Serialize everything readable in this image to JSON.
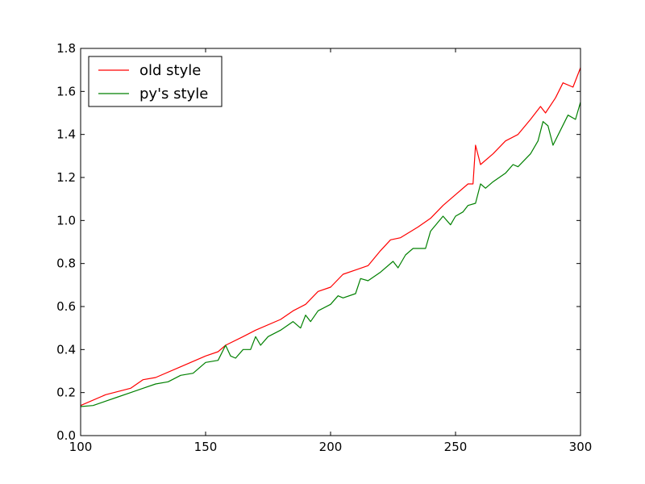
{
  "chart_data": {
    "type": "line",
    "title": "",
    "xlabel": "",
    "ylabel": "",
    "xlim": [
      100,
      300
    ],
    "ylim": [
      0.0,
      1.8
    ],
    "xticks": [
      100,
      150,
      200,
      250,
      300
    ],
    "xtick_labels": [
      "100",
      "150",
      "200",
      "250",
      "300"
    ],
    "yticks": [
      0.0,
      0.2,
      0.4,
      0.6,
      0.8,
      1.0,
      1.2,
      1.4,
      1.6,
      1.8
    ],
    "ytick_labels": [
      "0.0",
      "0.2",
      "0.4",
      "0.6",
      "0.8",
      "1.0",
      "1.2",
      "1.4",
      "1.6",
      "1.8"
    ],
    "grid": false,
    "legend_position": "top-left",
    "series": [
      {
        "name": "old style",
        "color": "#ff0000",
        "points": [
          [
            100,
            0.14
          ],
          [
            110,
            0.19
          ],
          [
            120,
            0.22
          ],
          [
            125,
            0.26
          ],
          [
            130,
            0.27
          ],
          [
            140,
            0.32
          ],
          [
            150,
            0.37
          ],
          [
            155,
            0.39
          ],
          [
            158,
            0.42
          ],
          [
            165,
            0.46
          ],
          [
            170,
            0.49
          ],
          [
            180,
            0.54
          ],
          [
            185,
            0.58
          ],
          [
            190,
            0.61
          ],
          [
            195,
            0.67
          ],
          [
            200,
            0.69
          ],
          [
            205,
            0.75
          ],
          [
            210,
            0.77
          ],
          [
            215,
            0.79
          ],
          [
            220,
            0.86
          ],
          [
            224,
            0.91
          ],
          [
            228,
            0.92
          ],
          [
            235,
            0.97
          ],
          [
            240,
            1.01
          ],
          [
            245,
            1.07
          ],
          [
            250,
            1.12
          ],
          [
            255,
            1.17
          ],
          [
            257,
            1.17
          ],
          [
            258,
            1.35
          ],
          [
            260,
            1.26
          ],
          [
            265,
            1.31
          ],
          [
            270,
            1.37
          ],
          [
            275,
            1.4
          ],
          [
            280,
            1.47
          ],
          [
            284,
            1.53
          ],
          [
            286,
            1.5
          ],
          [
            290,
            1.57
          ],
          [
            293,
            1.64
          ],
          [
            297,
            1.62
          ],
          [
            300,
            1.71
          ]
        ]
      },
      {
        "name": "py's style",
        "color": "#008000",
        "points": [
          [
            100,
            0.135
          ],
          [
            105,
            0.14
          ],
          [
            110,
            0.16
          ],
          [
            115,
            0.18
          ],
          [
            120,
            0.2
          ],
          [
            125,
            0.22
          ],
          [
            130,
            0.24
          ],
          [
            135,
            0.25
          ],
          [
            140,
            0.28
          ],
          [
            145,
            0.29
          ],
          [
            150,
            0.34
          ],
          [
            155,
            0.35
          ],
          [
            158,
            0.42
          ],
          [
            160,
            0.37
          ],
          [
            162,
            0.36
          ],
          [
            165,
            0.4
          ],
          [
            168,
            0.4
          ],
          [
            170,
            0.46
          ],
          [
            172,
            0.42
          ],
          [
            175,
            0.46
          ],
          [
            180,
            0.49
          ],
          [
            185,
            0.53
          ],
          [
            188,
            0.5
          ],
          [
            190,
            0.56
          ],
          [
            192,
            0.53
          ],
          [
            195,
            0.58
          ],
          [
            200,
            0.61
          ],
          [
            203,
            0.65
          ],
          [
            205,
            0.64
          ],
          [
            210,
            0.66
          ],
          [
            212,
            0.73
          ],
          [
            215,
            0.72
          ],
          [
            220,
            0.76
          ],
          [
            225,
            0.81
          ],
          [
            227,
            0.78
          ],
          [
            230,
            0.84
          ],
          [
            233,
            0.87
          ],
          [
            238,
            0.87
          ],
          [
            240,
            0.95
          ],
          [
            245,
            1.02
          ],
          [
            248,
            0.98
          ],
          [
            250,
            1.02
          ],
          [
            253,
            1.04
          ],
          [
            255,
            1.07
          ],
          [
            258,
            1.08
          ],
          [
            260,
            1.17
          ],
          [
            262,
            1.15
          ],
          [
            265,
            1.18
          ],
          [
            270,
            1.22
          ],
          [
            273,
            1.26
          ],
          [
            275,
            1.25
          ],
          [
            280,
            1.31
          ],
          [
            283,
            1.37
          ],
          [
            285,
            1.46
          ],
          [
            287,
            1.44
          ],
          [
            289,
            1.35
          ],
          [
            292,
            1.42
          ],
          [
            295,
            1.49
          ],
          [
            298,
            1.47
          ],
          [
            300,
            1.55
          ]
        ]
      }
    ]
  }
}
